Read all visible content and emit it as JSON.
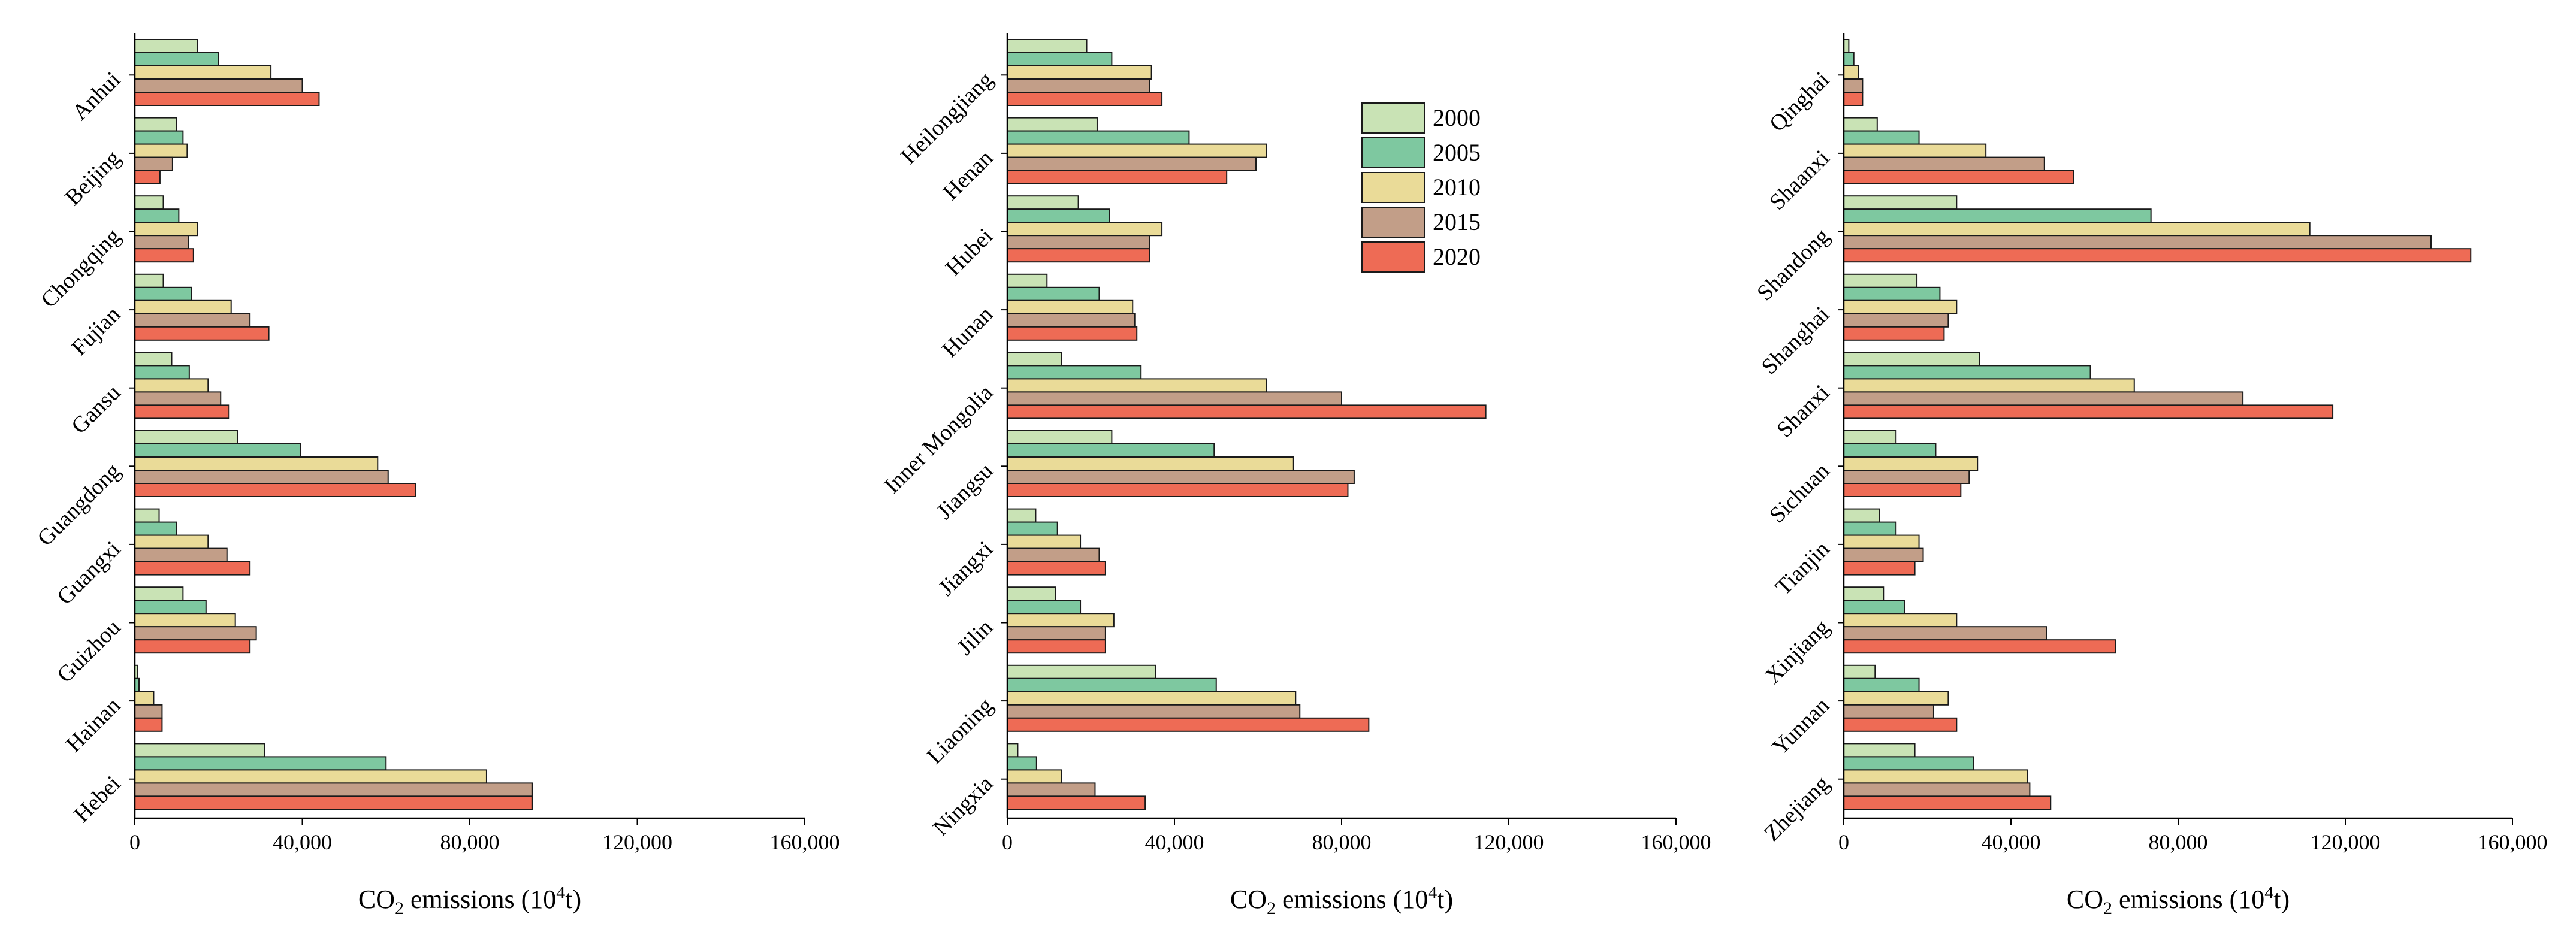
{
  "chart_data": [
    {
      "type": "bar",
      "orientation": "horizontal",
      "categories": [
        "Anhui",
        "Beijing",
        "Chongqing",
        "Fujian",
        "Gansu",
        "Guangdong",
        "Guangxi",
        "Guizhou",
        "Hainan",
        "Hebei"
      ],
      "series": [
        {
          "name": "2000",
          "values": [
            15000,
            10000,
            6800,
            6800,
            8800,
            24500,
            5800,
            11500,
            700,
            31000
          ]
        },
        {
          "name": "2005",
          "values": [
            20000,
            11500,
            10500,
            13500,
            13000,
            39500,
            10000,
            17000,
            1000,
            60000
          ]
        },
        {
          "name": "2010",
          "values": [
            32500,
            12500,
            15000,
            23000,
            17500,
            58000,
            17500,
            24000,
            4500,
            84000
          ]
        },
        {
          "name": "2015",
          "values": [
            40000,
            9000,
            12800,
            27500,
            20500,
            60500,
            22000,
            29000,
            6500,
            95000
          ]
        },
        {
          "name": "2020",
          "values": [
            44000,
            6000,
            14000,
            32000,
            22500,
            67000,
            27500,
            27500,
            6500,
            95000
          ]
        }
      ],
      "xlabel": "CO2 emissions (10^4t)",
      "xlim": [
        0,
        160000
      ],
      "xticks": [
        "0",
        "40,000",
        "80,000",
        "120,000",
        "160,000"
      ]
    },
    {
      "type": "bar",
      "orientation": "horizontal",
      "categories": [
        "Heilongjiang",
        "Henan",
        "Hubei",
        "Hunan",
        "Inner Mongolia",
        "Jiangsu",
        "Jiangxi",
        "Jilin",
        "Liaoning",
        "Ningxia"
      ],
      "series": [
        {
          "name": "2000",
          "values": [
            19000,
            21500,
            17000,
            9500,
            13000,
            25000,
            6800,
            11500,
            35500,
            2500
          ]
        },
        {
          "name": "2005",
          "values": [
            25000,
            43500,
            24500,
            22000,
            32000,
            49500,
            12000,
            17500,
            50000,
            7000
          ]
        },
        {
          "name": "2010",
          "values": [
            34500,
            62000,
            37000,
            30000,
            62000,
            68500,
            17500,
            25500,
            69000,
            13000
          ]
        },
        {
          "name": "2015",
          "values": [
            34000,
            59500,
            34000,
            30500,
            80000,
            83000,
            22000,
            23500,
            70000,
            21000
          ]
        },
        {
          "name": "2020",
          "values": [
            37000,
            52500,
            34000,
            31000,
            114500,
            81500,
            23500,
            23500,
            86500,
            33000
          ]
        }
      ],
      "xlabel": "CO2 emissions (10^4t)",
      "xlim": [
        0,
        160000
      ],
      "xticks": [
        "0",
        "40,000",
        "80,000",
        "120,000",
        "160,000"
      ]
    },
    {
      "type": "bar",
      "orientation": "horizontal",
      "categories": [
        "Qinghai",
        "Shaanxi",
        "Shandong",
        "Shanghai",
        "Shanxi",
        "Sichuan",
        "Tianjin",
        "Xinjiang",
        "Yunnan",
        "Zhejiang"
      ],
      "series": [
        {
          "name": "2000",
          "values": [
            1200,
            8000,
            27000,
            17500,
            32500,
            12500,
            8500,
            9500,
            7500,
            17000
          ]
        },
        {
          "name": "2005",
          "values": [
            2400,
            18000,
            73500,
            23000,
            59000,
            22000,
            12500,
            14500,
            18000,
            31000
          ]
        },
        {
          "name": "2010",
          "values": [
            3500,
            34000,
            111500,
            27000,
            69500,
            32000,
            18000,
            27000,
            25000,
            44000
          ]
        },
        {
          "name": "2015",
          "values": [
            4500,
            48000,
            140500,
            25000,
            95500,
            30000,
            19000,
            48500,
            21500,
            44500
          ]
        },
        {
          "name": "2020",
          "values": [
            4500,
            55000,
            150000,
            24000,
            117000,
            28000,
            17000,
            65000,
            27000,
            49500
          ]
        }
      ],
      "xlabel": "CO2 emissions (10^4t)",
      "xlim": [
        0,
        160000
      ],
      "xticks": [
        "0",
        "40,000",
        "80,000",
        "120,000",
        "160,000"
      ]
    }
  ],
  "axis_title": {
    "prefix": "CO",
    "subscript": "2",
    "middle": " emissions (10",
    "superscript": "4",
    "suffix": "t)"
  },
  "legend": {
    "placement": "top-right of middle panel",
    "items": [
      {
        "label": "2000",
        "color": "#c9e3b5"
      },
      {
        "label": "2005",
        "color": "#7ec8a0"
      },
      {
        "label": "2010",
        "color": "#eadb98"
      },
      {
        "label": "2015",
        "color": "#c29e88"
      },
      {
        "label": "2020",
        "color": "#ee6b55"
      }
    ]
  }
}
